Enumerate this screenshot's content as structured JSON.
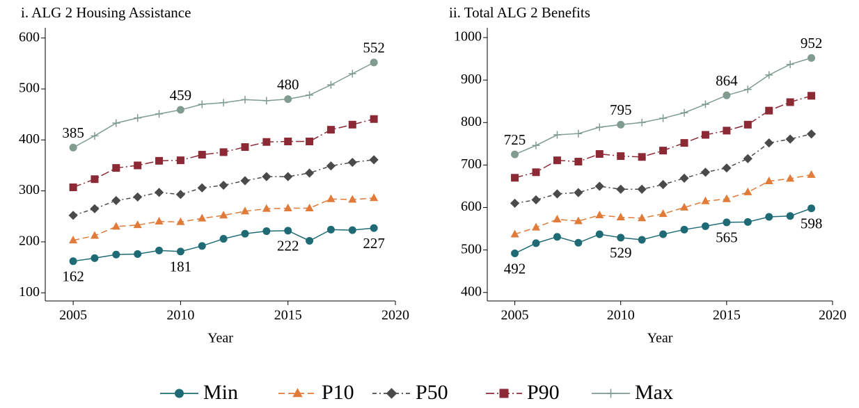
{
  "chart_data": [
    {
      "type": "line",
      "title": "i. ALG 2 Housing Assistance",
      "x_label": "Year",
      "x": [
        2005,
        2006,
        2007,
        2008,
        2009,
        2010,
        2011,
        2012,
        2013,
        2014,
        2015,
        2016,
        2017,
        2018,
        2019
      ],
      "xlim": [
        2003.7,
        2020
      ],
      "xticks": [
        2005,
        2010,
        2015,
        2020
      ],
      "ylim": [
        84,
        620
      ],
      "yticks": [
        100,
        200,
        300,
        400,
        500,
        600
      ],
      "series": [
        {
          "name": "Min",
          "color": "#1f6b75",
          "values": [
            162,
            168,
            175,
            176,
            183,
            181,
            192,
            206,
            216,
            221,
            222,
            202,
            224,
            223,
            227
          ]
        },
        {
          "name": "P10",
          "color": "#e07b39",
          "values": [
            203,
            212,
            230,
            233,
            240,
            239,
            246,
            252,
            260,
            265,
            266,
            266,
            284,
            283,
            286
          ]
        },
        {
          "name": "P50",
          "color": "#4a4a4a",
          "values": [
            252,
            265,
            281,
            288,
            297,
            293,
            306,
            311,
            320,
            328,
            328,
            335,
            349,
            356,
            361
          ]
        },
        {
          "name": "P90",
          "color": "#8b2a35",
          "values": [
            307,
            323,
            345,
            350,
            359,
            360,
            371,
            376,
            386,
            396,
            397,
            397,
            420,
            430,
            441
          ]
        },
        {
          "name": "Max",
          "color": "#7f9c8f",
          "values": [
            385,
            408,
            433,
            443,
            451,
            459,
            470,
            473,
            479,
            477,
            480,
            488,
            508,
            530,
            552
          ]
        }
      ]
    },
    {
      "type": "line",
      "title": "ii. Total ALG 2 Benefits",
      "x_label": "Year",
      "x": [
        2005,
        2006,
        2007,
        2008,
        2009,
        2010,
        2011,
        2012,
        2013,
        2014,
        2015,
        2016,
        2017,
        2018,
        2019
      ],
      "xlim": [
        2003.7,
        2020
      ],
      "xticks": [
        2005,
        2010,
        2015,
        2020
      ],
      "ylim": [
        380,
        1023
      ],
      "yticks": [
        400,
        500,
        600,
        700,
        800,
        900,
        1000
      ],
      "series": [
        {
          "name": "Min",
          "color": "#1f6b75",
          "values": [
            492,
            516,
            531,
            517,
            537,
            529,
            524,
            537,
            548,
            556,
            565,
            566,
            578,
            580,
            598
          ]
        },
        {
          "name": "P10",
          "color": "#e07b39",
          "values": [
            537,
            553,
            572,
            568,
            582,
            577,
            575,
            585,
            600,
            615,
            620,
            636,
            662,
            668,
            677
          ]
        },
        {
          "name": "P50",
          "color": "#4a4a4a",
          "values": [
            610,
            618,
            632,
            635,
            650,
            643,
            643,
            654,
            669,
            683,
            693,
            715,
            752,
            761,
            773
          ]
        },
        {
          "name": "P90",
          "color": "#8b2a35",
          "values": [
            670,
            683,
            711,
            708,
            726,
            721,
            719,
            734,
            752,
            771,
            781,
            795,
            828,
            848,
            863
          ]
        },
        {
          "name": "Max",
          "color": "#7f9c8f",
          "values": [
            725,
            746,
            771,
            774,
            789,
            795,
            800,
            810,
            823,
            843,
            864,
            878,
            912,
            937,
            952
          ]
        }
      ]
    }
  ]
}
